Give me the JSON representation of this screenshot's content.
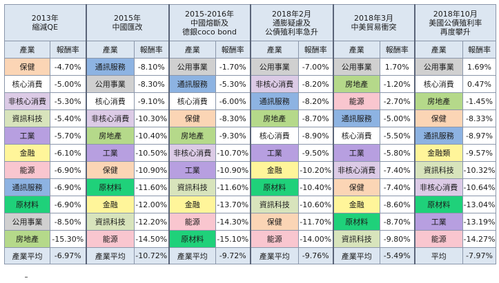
{
  "header": {
    "industry_label": "產業",
    "return_label": "報酬率"
  },
  "periods": [
    {
      "title": "2013年\n縮減QE"
    },
    {
      "title": "2015年\n中國匯改"
    },
    {
      "title": "2015-2016年\n中國熔斷及\n德銀coco bond"
    },
    {
      "title": "2018年2月\n通膨疑慮及\n公債殖利率急升"
    },
    {
      "title": "2018年3月\n中美貿易衝突"
    },
    {
      "title": "2018年10月\n美國公債殖利率\n再度攀升"
    }
  ],
  "industry_colors": {
    "保健": "#fbd5b5",
    "核心消費": "#ffffff",
    "非核心消費": "#dccbe6",
    "資訊科技": "#d8e4bc",
    "工業": "#b79fe0",
    "金融": "#fff59a",
    "金融類": "#fff59a",
    "能源": "#f9c6cf",
    "通訊服務": "#8db3e2",
    "原材料": "#1fd17a",
    "公用事業": "#d0d0d0",
    "房地產": "#b5d98a",
    "產業平均": "#dce6f1",
    "平均": "#dce6f1"
  },
  "rows": [
    [
      [
        "保健",
        "-4.70%"
      ],
      [
        "通訊服務",
        "-8.10%"
      ],
      [
        "公用事業",
        "-1.70%"
      ],
      [
        "公用事業",
        "-7.00%"
      ],
      [
        "公用事業",
        "1.70%"
      ],
      [
        "公用事業",
        "1.69%"
      ]
    ],
    [
      [
        "核心消費",
        "-5.00%"
      ],
      [
        "公用事業",
        "-8.30%"
      ],
      [
        "通訊服務",
        "-5.30%"
      ],
      [
        "非核心消費",
        "-8.20%"
      ],
      [
        "房地產",
        "-1.20%"
      ],
      [
        "核心消費",
        "0.47%"
      ]
    ],
    [
      [
        "非核心消費",
        "-5.30%"
      ],
      [
        "核心消費",
        "-9.10%"
      ],
      [
        "核心消費",
        "-6.00%"
      ],
      [
        "通訊服務",
        "-8.20%"
      ],
      [
        "能源",
        "-2.70%"
      ],
      [
        "房地產",
        "-1.45%"
      ]
    ],
    [
      [
        "資訊科技",
        "-5.40%"
      ],
      [
        "非核心消費",
        "-10.30%"
      ],
      [
        "保健",
        "-8.30%"
      ],
      [
        "房地產",
        "-8.70%"
      ],
      [
        "通訊服務",
        "-5.00%"
      ],
      [
        "保健",
        "-8.33%"
      ]
    ],
    [
      [
        "工業",
        "-5.70%"
      ],
      [
        "房地產",
        "-10.40%"
      ],
      [
        "房地產",
        "-9.30%"
      ],
      [
        "核心消費",
        "-8.90%"
      ],
      [
        "核心消費",
        "-5.50%"
      ],
      [
        "通訊服務",
        "-8.97%"
      ]
    ],
    [
      [
        "金融",
        "-6.10%"
      ],
      [
        "工業",
        "-10.50%"
      ],
      [
        "非核心消費",
        "-10.70%"
      ],
      [
        "工業",
        "-9.50%"
      ],
      [
        "工業",
        "-5.80%"
      ],
      [
        "金融類",
        "-9.57%"
      ]
    ],
    [
      [
        "能源",
        "-6.90%"
      ],
      [
        "保健",
        "-10.90%"
      ],
      [
        "工業",
        "-10.90%"
      ],
      [
        "金融",
        "-10.20%"
      ],
      [
        "非核心消費",
        "-7.40%"
      ],
      [
        "資訊科技",
        "-10.32%"
      ]
    ],
    [
      [
        "通訊服務",
        "-6.90%"
      ],
      [
        "原材料",
        "-11.60%"
      ],
      [
        "資訊科技",
        "-11.60%"
      ],
      [
        "原材料",
        "-10.40%"
      ],
      [
        "保健",
        "-7.40%"
      ],
      [
        "非核心消費",
        "-10.64%"
      ]
    ],
    [
      [
        "原材料",
        "-6.90%"
      ],
      [
        "金融",
        "-12.00%"
      ],
      [
        "金融",
        "-13.70%"
      ],
      [
        "資訊科技",
        "-10.60%"
      ],
      [
        "金融",
        "-8.60%"
      ],
      [
        "原材料",
        "-13.04%"
      ]
    ],
    [
      [
        "公用事業",
        "-8.50%"
      ],
      [
        "資訊科技",
        "-12.20%"
      ],
      [
        "能源",
        "-14.30%"
      ],
      [
        "保健",
        "-11.70%"
      ],
      [
        "原材料",
        "-8.70%"
      ],
      [
        "工業",
        "-13.19%"
      ]
    ],
    [
      [
        "房地產",
        "-15.30%"
      ],
      [
        "能源",
        "-14.50%"
      ],
      [
        "原材料",
        "-15.10%"
      ],
      [
        "能源",
        "-14.00%"
      ],
      [
        "資訊科技",
        "-9.80%"
      ],
      [
        "能源",
        "-14.27%"
      ]
    ]
  ],
  "averages": [
    [
      "產業平均",
      "-6.97%"
    ],
    [
      "產業平均",
      "-10.72%"
    ],
    [
      "產業平均",
      "-9.72%"
    ],
    [
      "產業平均",
      "-9.76%"
    ],
    [
      "產業平均",
      "-5.49%"
    ],
    [
      "平均",
      "-7.97%"
    ]
  ]
}
